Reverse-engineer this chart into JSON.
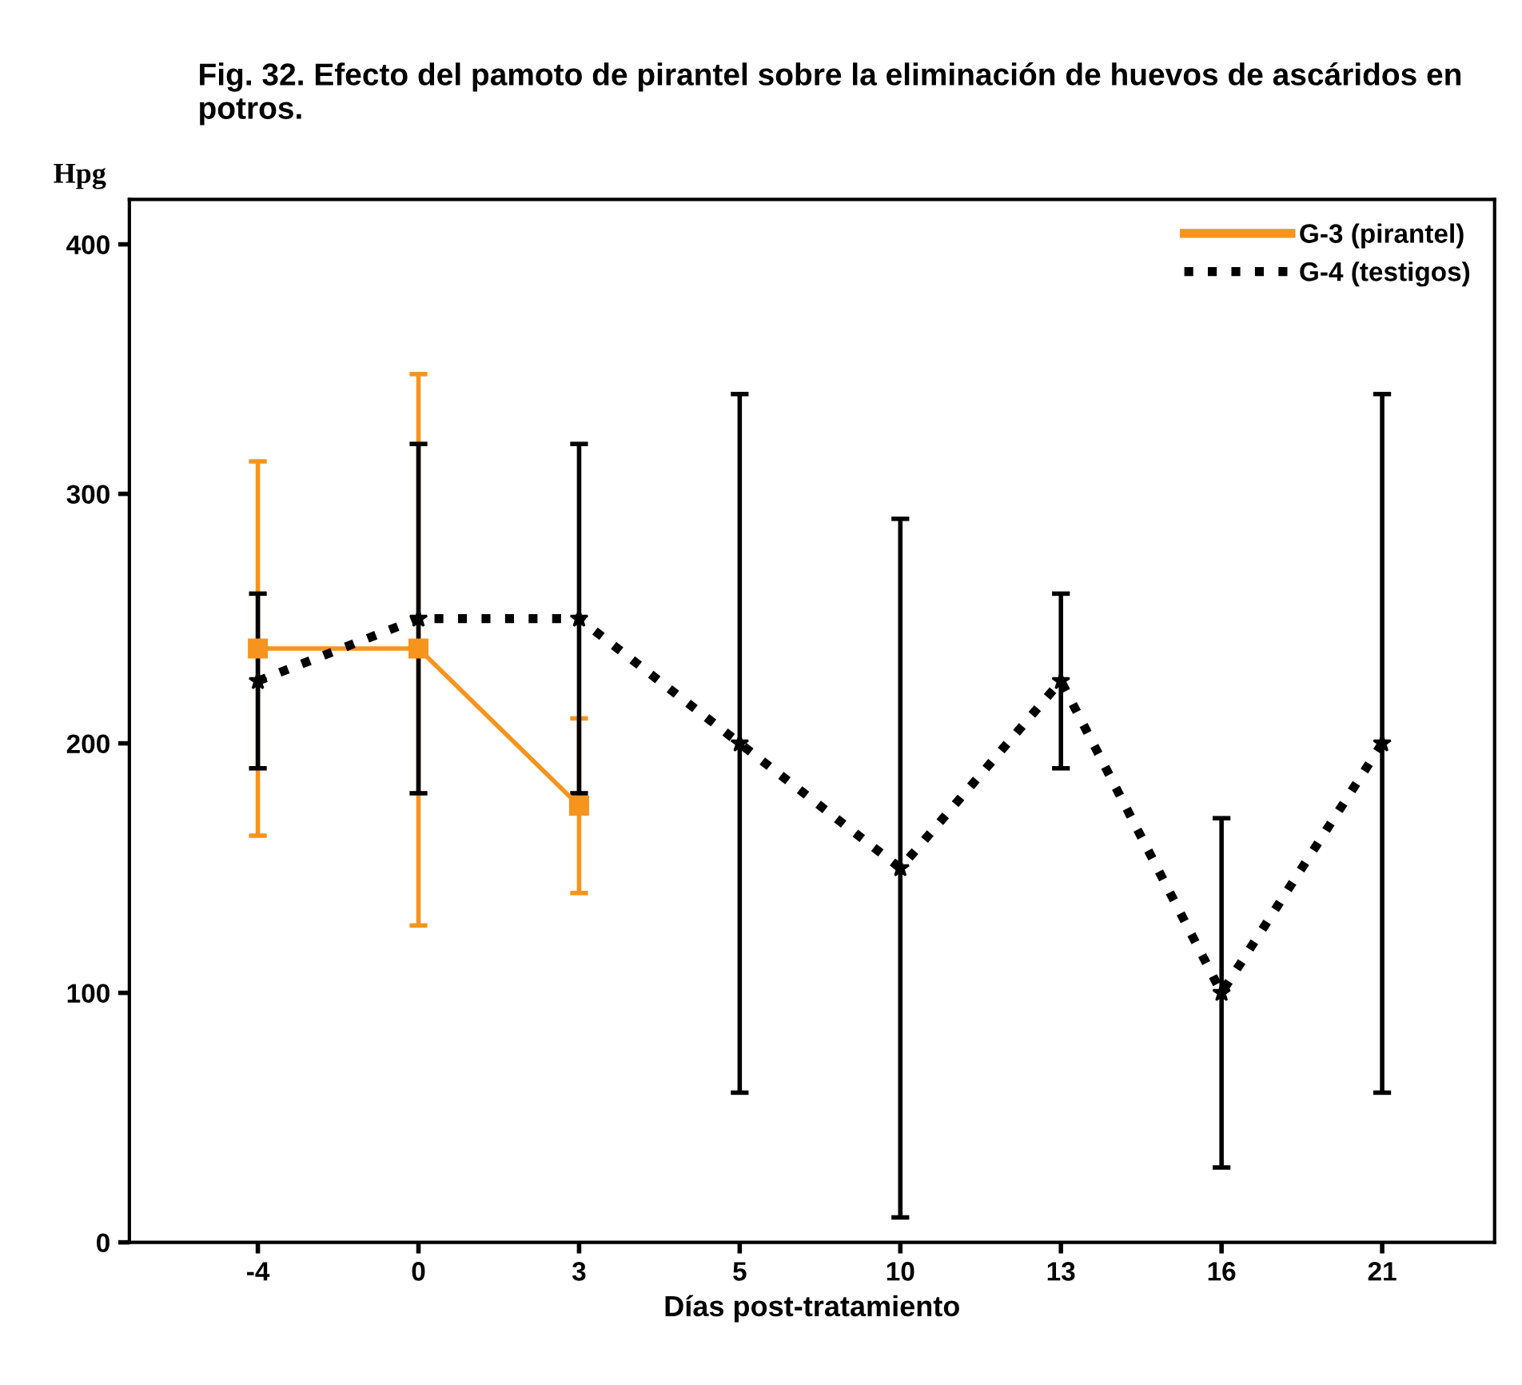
{
  "chart_data": {
    "type": "line",
    "title": "Fig. 32. Efecto del pamoto de pirantel sobre la eliminación de huevos de ascáridos en potros.",
    "xlabel": "Días post-tratamiento",
    "ylabel": "Hpg",
    "categories": [
      "-4",
      "0",
      "3",
      "5",
      "10",
      "13",
      "16",
      "21"
    ],
    "series": [
      {
        "name": "G-3 (pirantel)",
        "color": "#f7941d",
        "line_style": "solid",
        "marker": "square",
        "values": [
          238,
          238,
          175,
          null,
          null,
          null,
          null,
          null
        ],
        "errors": [
          [
            163,
            313
          ],
          [
            127,
            348
          ],
          [
            140,
            210
          ],
          null,
          null,
          null,
          null,
          null
        ]
      },
      {
        "name": "G-4 (testigos)",
        "color": "#000000",
        "line_style": "dotted",
        "marker": "star",
        "values": [
          225,
          250,
          250,
          200,
          150,
          225,
          100,
          200
        ],
        "errors": [
          [
            190,
            260
          ],
          [
            180,
            320
          ],
          [
            180,
            320
          ],
          [
            60,
            340
          ],
          [
            10,
            290
          ],
          [
            190,
            260
          ],
          [
            30,
            170
          ],
          [
            60,
            340
          ]
        ]
      }
    ],
    "ylim": [
      0,
      418
    ],
    "yticks": [
      0,
      100,
      200,
      300,
      400
    ],
    "grid": false,
    "legend": "top right"
  }
}
